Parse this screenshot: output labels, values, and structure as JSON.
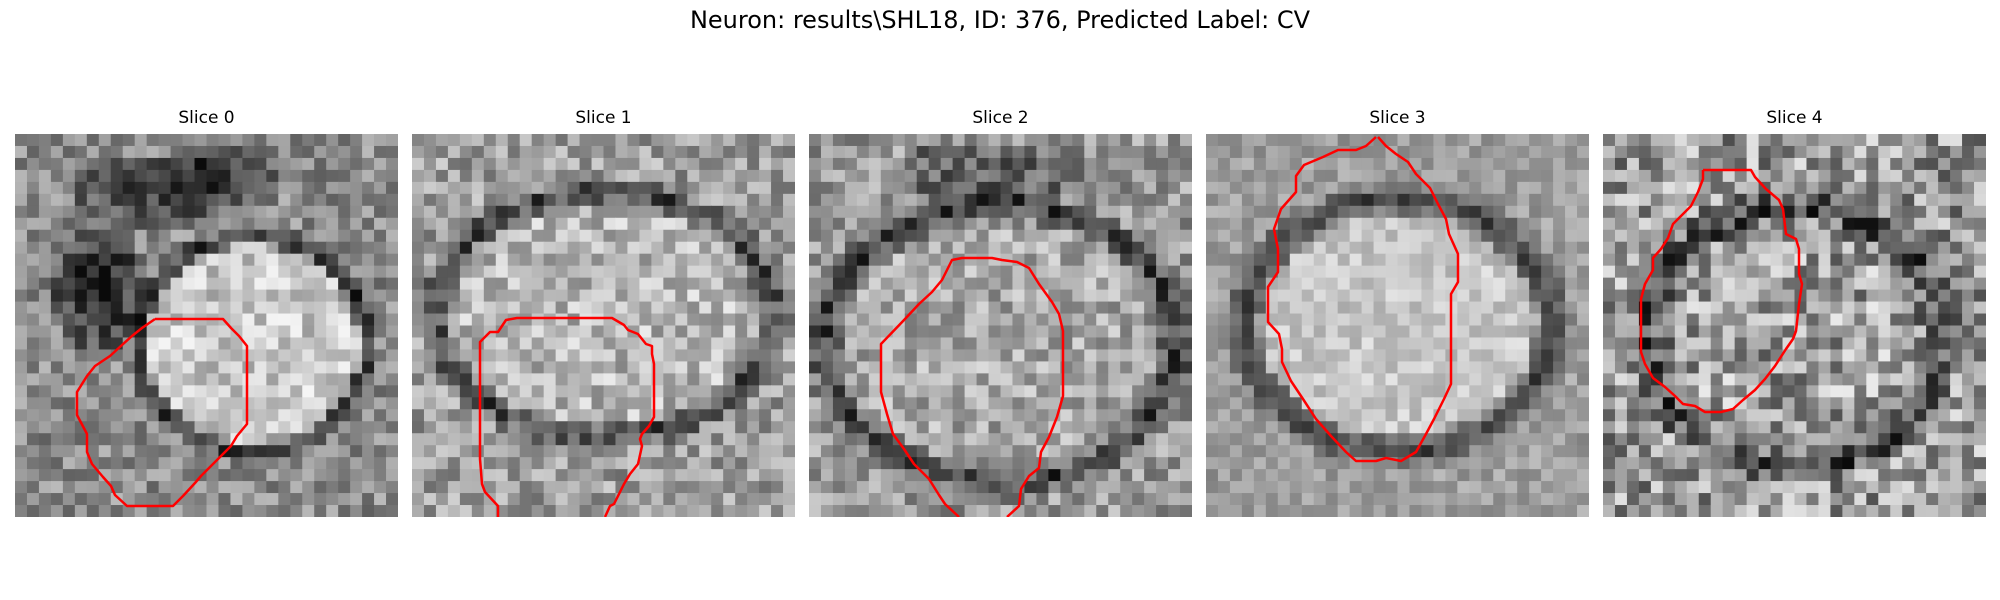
{
  "figure": {
    "title": "Neuron: results\\SHL18, ID: 376, Predicted Label: CV"
  },
  "panels": [
    {
      "title": "Slice 0"
    },
    {
      "title": "Slice 1"
    },
    {
      "title": "Slice 2"
    },
    {
      "title": "Slice 3"
    },
    {
      "title": "Slice 4"
    }
  ],
  "colors": {
    "contour": "#ff0000",
    "background": "#ffffff",
    "colormap": "gray"
  }
}
